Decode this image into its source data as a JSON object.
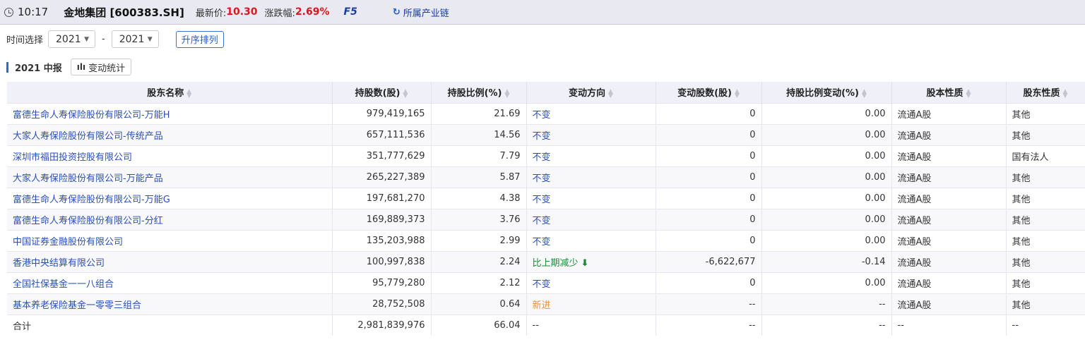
{
  "header": {
    "time": "10:17",
    "stock": "金地集团 [600383.SH]",
    "price_label": "最新价:",
    "price": "10.30",
    "change_label": "涨跌幅:",
    "change": "2.69%",
    "f5": "F5",
    "chain": "所属产业链"
  },
  "filter": {
    "label": "时间选择",
    "from": "2021",
    "to": "2021",
    "sep": "-",
    "sort": "升序排列"
  },
  "section": {
    "title": "2021 中报",
    "stat_btn": "变动统计"
  },
  "colors": {
    "accent": "#2a6ae0",
    "up": "#e0141e",
    "down": "#1a8a3a",
    "new": "#e8923a",
    "link": "#2a4fb8"
  },
  "table": {
    "headers": [
      "股东名称",
      "持股数(股)",
      "持股比例(%)",
      "变动方向",
      "变动股数(股)",
      "持股比例变动(%)",
      "股本性质",
      "股东性质"
    ],
    "rows": [
      [
        "富德生命人寿保险股份有限公司-万能H",
        "979,419,165",
        "21.69",
        "不变",
        "0",
        "0.00",
        "流通A股",
        "其他"
      ],
      [
        "大家人寿保险股份有限公司-传统产品",
        "657,111,536",
        "14.56",
        "不变",
        "0",
        "0.00",
        "流通A股",
        "其他"
      ],
      [
        "深圳市福田投资控股有限公司",
        "351,777,629",
        "7.79",
        "不变",
        "0",
        "0.00",
        "流通A股",
        "国有法人"
      ],
      [
        "大家人寿保险股份有限公司-万能产品",
        "265,227,389",
        "5.87",
        "不变",
        "0",
        "0.00",
        "流通A股",
        "其他"
      ],
      [
        "富德生命人寿保险股份有限公司-万能G",
        "197,681,270",
        "4.38",
        "不变",
        "0",
        "0.00",
        "流通A股",
        "其他"
      ],
      [
        "富德生命人寿保险股份有限公司-分红",
        "169,889,373",
        "3.76",
        "不变",
        "0",
        "0.00",
        "流通A股",
        "其他"
      ],
      [
        "中国证券金融股份有限公司",
        "135,203,988",
        "2.99",
        "不变",
        "0",
        "0.00",
        "流通A股",
        "其他"
      ],
      [
        "香港中央结算有限公司",
        "100,997,838",
        "2.24",
        "比上期减少",
        "-6,622,677",
        "-0.14",
        "流通A股",
        "其他"
      ],
      [
        "全国社保基金一一八组合",
        "95,779,280",
        "2.12",
        "不变",
        "0",
        "0.00",
        "流通A股",
        "其他"
      ],
      [
        "基本养老保险基金一零零三组合",
        "28,752,508",
        "0.64",
        "新进",
        "--",
        "--",
        "流通A股",
        "其他"
      ],
      [
        "合计",
        "2,981,839,976",
        "66.04",
        "--",
        "--",
        "--",
        "--",
        "--"
      ]
    ]
  }
}
